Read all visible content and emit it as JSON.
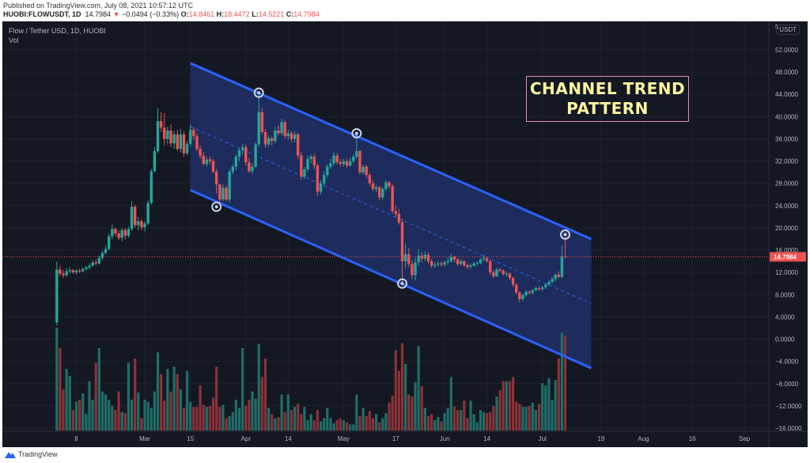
{
  "header": {
    "published": "Published on TradingView.com, July 08, 2021 10:57:12 UTC",
    "symbol": "HUOBI:FLOWUSDT, 1D",
    "last": "14.7984",
    "change": "−0.0494 (−0.33%)",
    "o_label": "O:",
    "o": "14.8461",
    "h_label": "H:",
    "h": "18.4472",
    "l_label": "L:",
    "l": "14.5221",
    "c_label": "C:",
    "c": "14.7984"
  },
  "legend": {
    "title": "Flow / Tether USD, 1D, HUOBI",
    "vol": "Vol"
  },
  "annotation": {
    "line1": "CHANNEL TREND",
    "line2": "PATTERN"
  },
  "axis": {
    "currency": "USDT",
    "top_partial": "5"
  },
  "footer": {
    "brand": "TradingView"
  },
  "colors": {
    "up": "#26a69a",
    "down": "#ef5350",
    "channel": "#2962ff",
    "channel_fill": "#1e3066",
    "background": "#141823",
    "annotation_text": "#fff59d",
    "annotation_border": "#e98ba7"
  },
  "chart_data": {
    "type": "candlestick",
    "y_ticks": [
      "52.0000",
      "48.0000",
      "44.0000",
      "40.0000",
      "36.0000",
      "32.0000",
      "28.0000",
      "24.0000",
      "20.0000",
      "16.0000",
      "12.0000",
      "8.0000",
      "4.0000",
      "0.0000",
      "−4.0000",
      "−8.0000",
      "−12.0000",
      "−16.0000"
    ],
    "ylim": [
      -16,
      52
    ],
    "x_ticks": [
      {
        "label": "8",
        "date": "02-08"
      },
      {
        "label": "Mar",
        "date": "03-01"
      },
      {
        "label": "15",
        "date": "03-15"
      },
      {
        "label": "Apr",
        "date": "04-01"
      },
      {
        "label": "14",
        "date": "04-14"
      },
      {
        "label": "May",
        "date": "05-01"
      },
      {
        "label": "17",
        "date": "05-17"
      },
      {
        "label": "Jun",
        "date": "06-01"
      },
      {
        "label": "14",
        "date": "06-14"
      },
      {
        "label": "Jul",
        "date": "07-01"
      },
      {
        "label": "19",
        "date": "07-19"
      },
      {
        "label": "Aug",
        "date": "08-01"
      },
      {
        "label": "16",
        "date": "08-16"
      },
      {
        "label": "Sep",
        "date": "09-01"
      }
    ],
    "current_price": 14.7984,
    "current_price_label": "14.7984",
    "channel": {
      "start": "03-15",
      "end": "07-16",
      "upper": [
        49.6,
        18.0
      ],
      "lower": [
        26.8,
        -5.2
      ]
    },
    "touch_points": [
      {
        "date": "03-23",
        "price": 23.8
      },
      {
        "date": "04-05",
        "price": 44.3
      },
      {
        "date": "05-05",
        "price": 37.0
      },
      {
        "date": "05-19",
        "price": 10.0
      },
      {
        "date": "07-08",
        "price": 18.8
      }
    ],
    "candles_format": [
      "date",
      "open",
      "high",
      "low",
      "close",
      "volume_relative"
    ],
    "candles": [
      [
        "02-02",
        3.0,
        14.0,
        2.5,
        12.5,
        100
      ],
      [
        "02-03",
        12.5,
        13.2,
        11.3,
        11.8,
        80
      ],
      [
        "02-04",
        11.8,
        12.4,
        11.0,
        11.5,
        40
      ],
      [
        "02-05",
        11.5,
        12.8,
        11.2,
        12.2,
        60
      ],
      [
        "02-06",
        12.2,
        12.9,
        11.8,
        12.4,
        53
      ],
      [
        "02-07",
        12.4,
        12.6,
        11.7,
        12.0,
        20
      ],
      [
        "02-08",
        12.0,
        12.6,
        11.6,
        12.3,
        28
      ],
      [
        "02-09",
        12.3,
        12.7,
        11.9,
        12.2,
        30
      ],
      [
        "02-10",
        12.2,
        12.9,
        12.0,
        12.6,
        36
      ],
      [
        "02-11",
        12.6,
        13.2,
        12.3,
        12.9,
        16
      ],
      [
        "02-12",
        12.9,
        13.6,
        12.6,
        13.2,
        48
      ],
      [
        "02-13",
        13.2,
        14.2,
        13.0,
        13.8,
        30
      ],
      [
        "02-14",
        13.8,
        14.3,
        13.2,
        13.6,
        66
      ],
      [
        "02-15",
        13.6,
        15.0,
        13.4,
        14.6,
        80
      ],
      [
        "02-16",
        14.6,
        15.9,
        14.2,
        15.5,
        38
      ],
      [
        "02-17",
        15.5,
        16.8,
        15.2,
        16.2,
        35
      ],
      [
        "02-18",
        16.2,
        19.0,
        16.0,
        18.5,
        30
      ],
      [
        "02-19",
        18.5,
        20.6,
        18.0,
        19.8,
        24
      ],
      [
        "02-20",
        19.8,
        20.1,
        18.5,
        19.0,
        20
      ],
      [
        "02-21",
        19.0,
        19.6,
        17.8,
        18.2,
        38
      ],
      [
        "02-22",
        18.2,
        20.0,
        17.6,
        19.6,
        18
      ],
      [
        "02-23",
        19.6,
        20.0,
        17.9,
        18.6,
        17
      ],
      [
        "02-24",
        18.6,
        20.2,
        18.2,
        19.8,
        66
      ],
      [
        "02-25",
        19.8,
        24.8,
        19.5,
        23.8,
        30
      ],
      [
        "02-26",
        23.8,
        24.2,
        20.0,
        20.5,
        70
      ],
      [
        "02-27",
        20.5,
        22.0,
        19.6,
        21.2,
        37
      ],
      [
        "02-28",
        21.2,
        21.6,
        19.6,
        20.1,
        12
      ],
      [
        "03-01",
        20.1,
        21.2,
        19.4,
        20.8,
        30
      ],
      [
        "03-02",
        20.8,
        25.0,
        20.5,
        24.5,
        28
      ],
      [
        "03-03",
        24.5,
        30.6,
        24.2,
        30.2,
        22
      ],
      [
        "03-04",
        30.2,
        34.5,
        30.0,
        33.8,
        38
      ],
      [
        "03-05",
        33.8,
        41.5,
        33.5,
        39.2,
        76
      ],
      [
        "03-06",
        39.2,
        40.8,
        37.2,
        38.0,
        55
      ],
      [
        "03-07",
        38.0,
        40.6,
        34.8,
        36.0,
        29
      ],
      [
        "03-08",
        36.0,
        38.2,
        35.0,
        37.5,
        60
      ],
      [
        "03-09",
        37.5,
        38.6,
        34.5,
        35.2,
        38
      ],
      [
        "03-10",
        35.2,
        37.4,
        34.2,
        36.8,
        62
      ],
      [
        "03-11",
        36.8,
        37.6,
        33.8,
        34.2,
        55
      ],
      [
        "03-12",
        34.2,
        37.8,
        33.6,
        36.8,
        40
      ],
      [
        "03-13",
        36.8,
        37.4,
        32.8,
        33.4,
        22
      ],
      [
        "03-14",
        33.4,
        35.6,
        33.0,
        35.1,
        58
      ],
      [
        "03-15",
        35.1,
        38.6,
        34.6,
        37.6,
        28
      ],
      [
        "03-16",
        37.6,
        38.0,
        35.8,
        36.5,
        23
      ],
      [
        "03-17",
        36.5,
        37.0,
        33.8,
        34.2,
        23
      ],
      [
        "03-18",
        34.2,
        34.8,
        32.4,
        33.0,
        44
      ],
      [
        "03-19",
        33.0,
        33.6,
        31.2,
        31.5,
        25
      ],
      [
        "03-20",
        31.5,
        32.8,
        31.0,
        32.3,
        23
      ],
      [
        "03-21",
        32.3,
        32.8,
        31.4,
        32.0,
        24
      ],
      [
        "03-22",
        32.0,
        32.4,
        29.8,
        30.1,
        32
      ],
      [
        "03-23",
        30.1,
        30.6,
        26.2,
        27.8,
        62
      ],
      [
        "03-24",
        27.8,
        28.0,
        24.4,
        25.1,
        23
      ],
      [
        "03-25",
        25.1,
        27.8,
        24.8,
        27.2,
        25
      ],
      [
        "03-26",
        27.2,
        27.6,
        24.8,
        25.1,
        12
      ],
      [
        "03-27",
        25.1,
        30.6,
        24.6,
        30.1,
        14
      ],
      [
        "03-28",
        30.1,
        31.4,
        29.6,
        31.0,
        18
      ],
      [
        "03-29",
        31.0,
        33.2,
        30.4,
        32.8,
        30
      ],
      [
        "03-30",
        32.8,
        34.4,
        32.0,
        34.0,
        22
      ],
      [
        "03-31",
        34.0,
        35.2,
        33.2,
        34.5,
        80
      ],
      [
        "04-01",
        34.5,
        35.0,
        31.2,
        31.8,
        24
      ],
      [
        "04-02",
        31.8,
        32.6,
        29.8,
        30.2,
        30
      ],
      [
        "04-03",
        30.2,
        31.6,
        29.6,
        31.0,
        38
      ],
      [
        "04-04",
        31.0,
        35.4,
        30.8,
        35.0,
        31
      ],
      [
        "04-05",
        35.0,
        44.3,
        34.6,
        40.8,
        84
      ],
      [
        "04-06",
        40.8,
        41.6,
        36.8,
        37.2,
        52
      ],
      [
        "04-07",
        37.2,
        37.8,
        34.4,
        35.0,
        70
      ],
      [
        "04-08",
        35.0,
        36.6,
        34.6,
        36.1,
        22
      ],
      [
        "04-09",
        36.1,
        36.4,
        34.8,
        35.6,
        16
      ],
      [
        "04-10",
        35.6,
        38.2,
        35.2,
        37.5,
        12
      ],
      [
        "04-11",
        37.5,
        38.4,
        36.6,
        37.0,
        13
      ],
      [
        "04-12",
        37.0,
        39.6,
        36.6,
        39.0,
        35
      ],
      [
        "04-13",
        39.0,
        39.3,
        36.0,
        36.5,
        18
      ],
      [
        "04-14",
        36.5,
        37.6,
        35.8,
        37.0,
        35
      ],
      [
        "04-15",
        37.0,
        37.4,
        35.4,
        36.0,
        20
      ],
      [
        "04-16",
        36.0,
        37.3,
        35.4,
        36.8,
        23
      ],
      [
        "04-17",
        36.8,
        37.2,
        32.4,
        33.0,
        26
      ],
      [
        "04-18",
        33.0,
        33.6,
        28.6,
        29.2,
        16
      ],
      [
        "04-19",
        29.2,
        31.0,
        28.8,
        30.5,
        23
      ],
      [
        "04-20",
        30.5,
        33.0,
        30.0,
        32.4,
        10
      ],
      [
        "04-21",
        32.4,
        33.2,
        31.6,
        32.8,
        16
      ],
      [
        "04-22",
        32.8,
        33.4,
        30.6,
        31.2,
        10
      ],
      [
        "04-23",
        31.2,
        31.6,
        25.8,
        26.5,
        20
      ],
      [
        "04-24",
        26.5,
        28.6,
        26.0,
        28.0,
        9
      ],
      [
        "04-25",
        28.0,
        30.2,
        27.6,
        29.5,
        12
      ],
      [
        "04-26",
        29.5,
        31.4,
        29.0,
        31.0,
        22
      ],
      [
        "04-27",
        31.0,
        32.4,
        30.6,
        31.6,
        12
      ],
      [
        "04-28",
        31.6,
        33.6,
        31.2,
        33.0,
        7
      ],
      [
        "04-29",
        33.0,
        33.4,
        31.4,
        31.8,
        10
      ],
      [
        "04-30",
        31.8,
        32.4,
        31.0,
        31.5,
        12
      ],
      [
        "05-01",
        31.5,
        32.4,
        31.0,
        32.0,
        10
      ],
      [
        "05-02",
        32.0,
        32.4,
        30.8,
        31.2,
        8
      ],
      [
        "05-03",
        31.2,
        32.6,
        31.0,
        32.0,
        6
      ],
      [
        "05-04",
        32.0,
        33.2,
        31.6,
        32.8,
        6
      ],
      [
        "05-05",
        32.8,
        37.0,
        32.4,
        33.8,
        35
      ],
      [
        "05-06",
        33.8,
        34.0,
        29.6,
        30.0,
        14
      ],
      [
        "05-07",
        30.0,
        31.4,
        29.6,
        31.0,
        22
      ],
      [
        "05-08",
        31.0,
        31.4,
        29.0,
        29.5,
        14
      ],
      [
        "05-09",
        29.5,
        29.9,
        27.6,
        28.0,
        19
      ],
      [
        "05-10",
        28.0,
        28.6,
        26.6,
        27.0,
        12
      ],
      [
        "05-11",
        27.0,
        27.8,
        26.4,
        27.3,
        16
      ],
      [
        "05-12",
        27.3,
        27.6,
        25.0,
        25.5,
        8
      ],
      [
        "05-13",
        25.5,
        27.4,
        25.0,
        27.0,
        12
      ],
      [
        "05-14",
        27.0,
        28.6,
        26.6,
        28.2,
        17
      ],
      [
        "05-15",
        28.2,
        28.4,
        27.0,
        27.5,
        27
      ],
      [
        "05-16",
        27.5,
        27.9,
        22.6,
        23.0,
        34
      ],
      [
        "05-17",
        23.0,
        24.0,
        22.0,
        22.5,
        78
      ],
      [
        "05-18",
        22.5,
        23.4,
        20.6,
        21.0,
        58
      ],
      [
        "05-19",
        21.0,
        21.6,
        10.0,
        14.0,
        85
      ],
      [
        "05-20",
        14.0,
        17.2,
        12.8,
        15.3,
        65
      ],
      [
        "05-21",
        15.3,
        16.4,
        13.0,
        13.5,
        35
      ],
      [
        "05-22",
        13.5,
        14.2,
        10.8,
        11.5,
        33
      ],
      [
        "05-23",
        11.5,
        14.6,
        10.6,
        13.8,
        47
      ],
      [
        "05-24",
        13.8,
        16.2,
        13.2,
        15.0,
        82
      ],
      [
        "05-25",
        15.0,
        15.6,
        13.8,
        14.5,
        43
      ],
      [
        "05-26",
        14.5,
        15.8,
        14.0,
        15.2,
        22
      ],
      [
        "05-27",
        15.2,
        15.6,
        13.6,
        14.0,
        14
      ],
      [
        "05-28",
        14.0,
        14.4,
        12.8,
        13.2,
        16
      ],
      [
        "05-29",
        13.2,
        13.8,
        12.8,
        13.4,
        10
      ],
      [
        "05-30",
        13.4,
        14.0,
        13.0,
        13.6,
        13
      ],
      [
        "05-31",
        13.6,
        14.0,
        13.0,
        13.4,
        9
      ],
      [
        "06-01",
        13.4,
        14.2,
        13.0,
        13.8,
        17
      ],
      [
        "06-02",
        13.8,
        14.6,
        13.4,
        14.0,
        22
      ],
      [
        "06-03",
        14.0,
        15.4,
        13.8,
        14.8,
        52
      ],
      [
        "06-04",
        14.8,
        15.0,
        13.8,
        14.3,
        23
      ],
      [
        "06-05",
        14.3,
        14.6,
        13.2,
        13.5,
        20
      ],
      [
        "06-06",
        13.5,
        14.4,
        13.2,
        14.0,
        20
      ],
      [
        "06-07",
        14.0,
        14.2,
        13.0,
        13.3,
        29
      ],
      [
        "06-08",
        13.3,
        13.6,
        12.6,
        13.0,
        12
      ],
      [
        "06-09",
        13.0,
        13.6,
        12.6,
        13.2,
        29
      ],
      [
        "06-10",
        13.2,
        13.9,
        13.0,
        13.6,
        16
      ],
      [
        "06-11",
        13.6,
        14.0,
        13.2,
        13.7,
        8
      ],
      [
        "06-12",
        13.7,
        14.6,
        13.4,
        14.3,
        20
      ],
      [
        "06-13",
        14.3,
        15.2,
        14.0,
        14.5,
        18
      ],
      [
        "06-14",
        14.5,
        14.8,
        13.8,
        14.0,
        17
      ],
      [
        "06-15",
        14.0,
        14.3,
        11.6,
        12.0,
        18
      ],
      [
        "06-16",
        12.0,
        12.4,
        11.0,
        11.3,
        24
      ],
      [
        "06-17",
        11.3,
        12.8,
        11.2,
        12.5,
        33
      ],
      [
        "06-18",
        12.5,
        12.8,
        12.0,
        12.3,
        39
      ],
      [
        "06-19",
        12.3,
        12.6,
        11.4,
        11.7,
        48
      ],
      [
        "06-20",
        11.7,
        12.2,
        11.2,
        11.8,
        48
      ],
      [
        "06-21",
        11.8,
        12.0,
        10.6,
        11.0,
        48
      ],
      [
        "06-22",
        11.0,
        11.2,
        9.4,
        9.8,
        52
      ],
      [
        "06-23",
        9.8,
        10.0,
        8.0,
        8.4,
        28
      ],
      [
        "06-24",
        8.4,
        8.6,
        6.6,
        7.2,
        26
      ],
      [
        "06-25",
        7.2,
        8.2,
        6.8,
        7.9,
        23
      ],
      [
        "06-26",
        7.9,
        8.8,
        7.6,
        8.5,
        23
      ],
      [
        "06-27",
        8.5,
        8.8,
        8.0,
        8.3,
        24
      ],
      [
        "06-28",
        8.3,
        9.0,
        8.0,
        8.8,
        27
      ],
      [
        "06-29",
        8.8,
        9.4,
        8.6,
        9.2,
        20
      ],
      [
        "06-30",
        9.2,
        9.5,
        8.7,
        9.0,
        26
      ],
      [
        "07-01",
        9.0,
        9.6,
        8.6,
        9.3,
        46
      ],
      [
        "07-02",
        9.3,
        10.0,
        9.0,
        9.8,
        44
      ],
      [
        "07-03",
        9.8,
        10.6,
        9.6,
        10.3,
        51
      ],
      [
        "07-04",
        10.3,
        11.2,
        10.0,
        10.8,
        30
      ],
      [
        "07-05",
        10.8,
        11.8,
        10.4,
        11.6,
        49
      ],
      [
        "07-06",
        11.6,
        12.2,
        11.0,
        11.2,
        70
      ],
      [
        "07-07",
        11.2,
        16.8,
        11.0,
        14.85,
        95
      ],
      [
        "07-08",
        14.8461,
        18.4472,
        14.5221,
        14.7984,
        92
      ]
    ]
  }
}
